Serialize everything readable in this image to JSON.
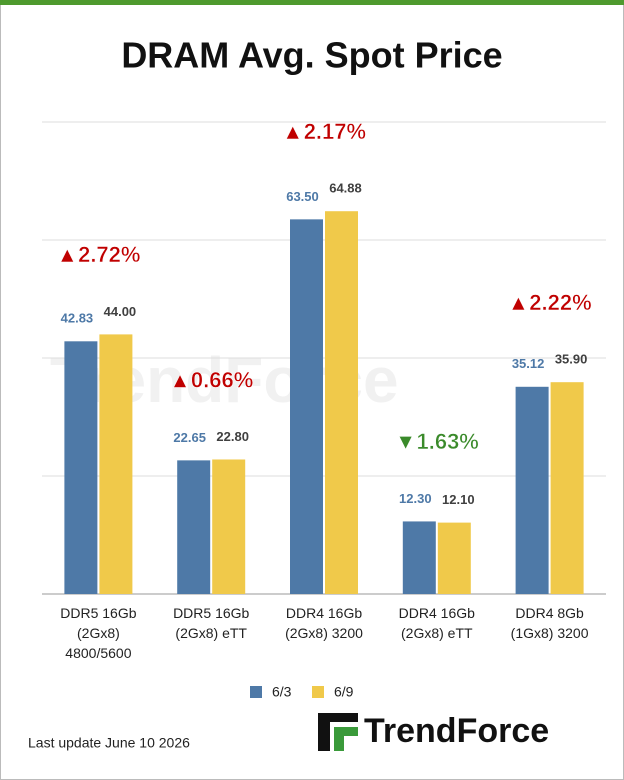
{
  "chart_data": {
    "type": "bar",
    "title": "DRAM Avg. Spot Price",
    "categories": [
      "DDR5 16Gb\n(2Gx8)\n4800/5600",
      "DDR5 16Gb\n(2Gx8) eTT",
      "DDR4 16Gb\n(2Gx8) 3200",
      "DDR4 16Gb\n(2Gx8) eTT",
      "DDR4 8Gb\n(1Gx8) 3200"
    ],
    "series": [
      {
        "name": "6/3",
        "color": "#4e79a7",
        "label_color": "#4e79a7",
        "values": [
          42.83,
          22.65,
          63.5,
          12.3,
          35.12
        ],
        "value_labels": [
          "42.83",
          "22.65",
          "63.50",
          "12.30",
          "35.12"
        ]
      },
      {
        "name": "6/9",
        "color": "#f0c94a",
        "label_color": "#404040",
        "values": [
          44,
          22.8,
          64.88,
          12.1,
          35.9
        ],
        "value_labels": [
          "44.00",
          "22.80",
          "64.88",
          "12.10",
          "35.90"
        ]
      }
    ],
    "annotations": [
      {
        "text": "▲2.72%",
        "color": "#c00000"
      },
      {
        "text": "▲0.66%",
        "color": "#c00000"
      },
      {
        "text": "▲2.17%",
        "color": "#c00000"
      },
      {
        "text": "▼1.63%",
        "color": "#3a8a2a"
      },
      {
        "text": "▲2.22%",
        "color": "#c00000"
      }
    ],
    "ylim": [
      0,
      80
    ],
    "yticks": [
      0,
      20,
      40,
      60,
      80
    ],
    "grid": true,
    "footer": "Last update  June 10  2026",
    "logo": "TrendForce"
  }
}
